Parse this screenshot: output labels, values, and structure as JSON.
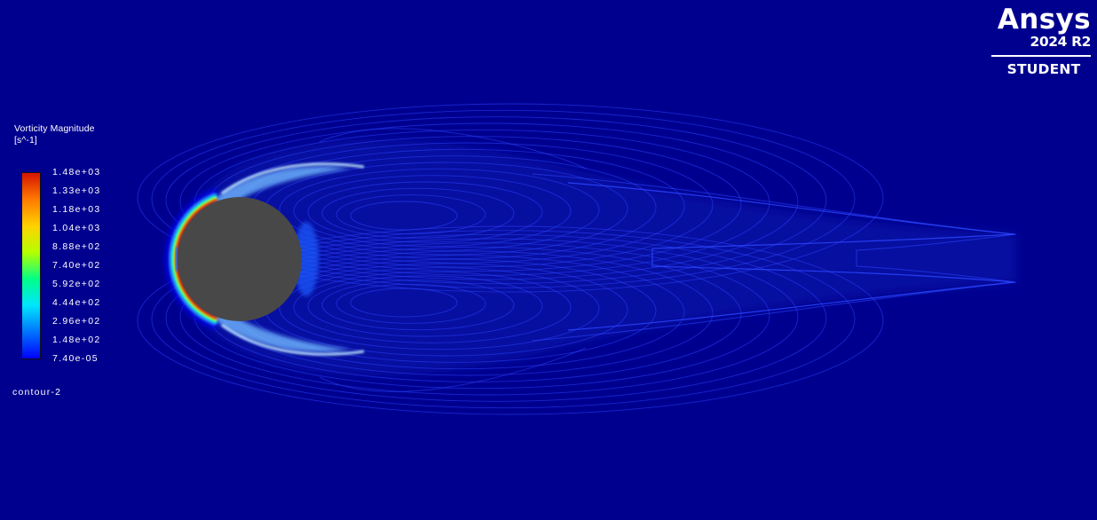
{
  "viewport": {
    "background": "#00008f",
    "cylinder_color": "#484848",
    "contour_line_color": "#2b45ff"
  },
  "legend": {
    "title": "Vorticity Magnitude",
    "unit": "[s^-1]",
    "colormap": [
      "#0000ff",
      "#0074ff",
      "#00e5ff",
      "#00ff88",
      "#b4ff00",
      "#ffd200",
      "#ff7a00",
      "#d51400"
    ],
    "ticks": [
      "1.48e+03",
      "1.33e+03",
      "1.18e+03",
      "1.04e+03",
      "8.88e+02",
      "7.40e+02",
      "5.92e+02",
      "4.44e+02",
      "2.96e+02",
      "1.48e+02",
      "7.40e-05"
    ]
  },
  "contour_name": "contour-2",
  "logo": {
    "brand": "Ansys",
    "version": "2024 R2",
    "edition": "STUDENT"
  }
}
